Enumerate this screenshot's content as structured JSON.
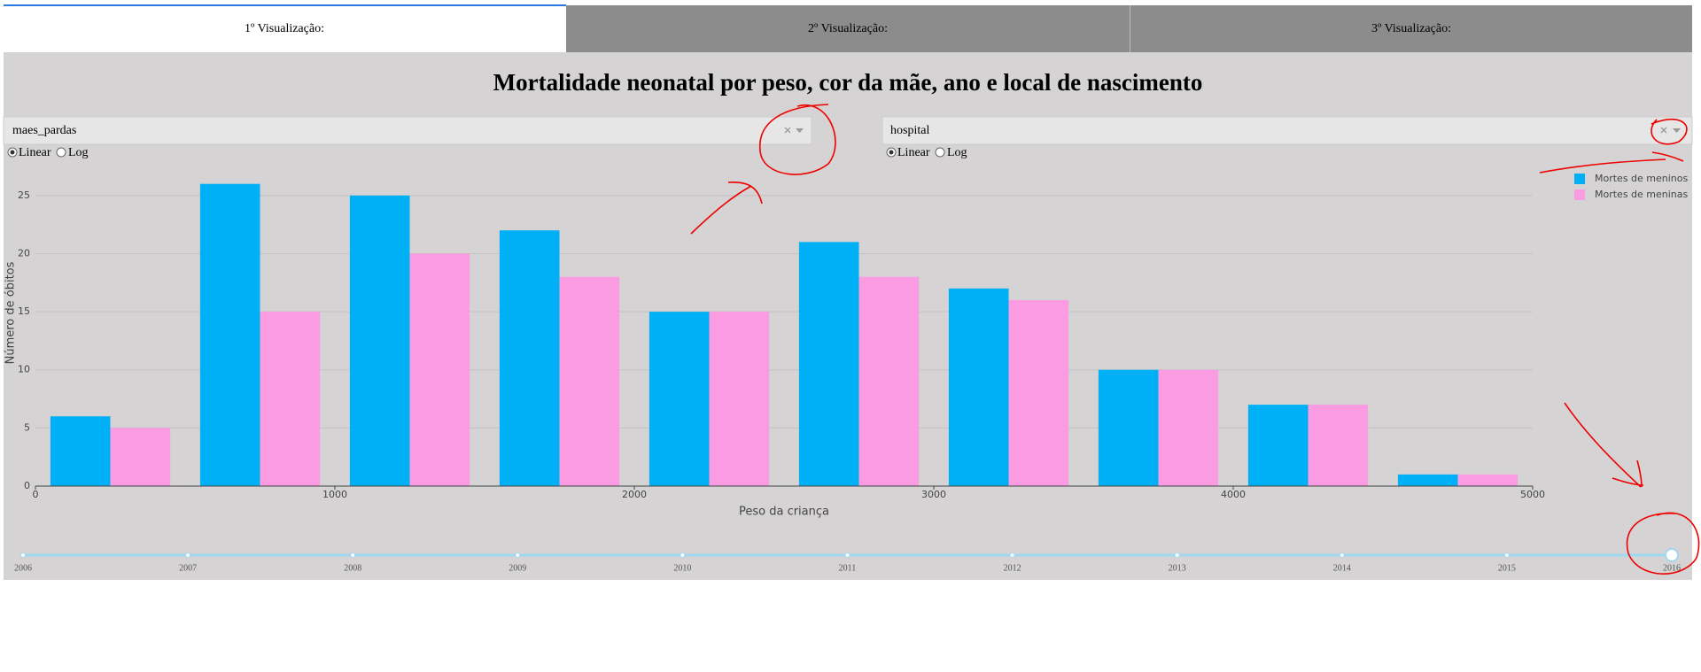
{
  "tabs": [
    "1º Visualização:",
    "2º Visualização:",
    "3º Visualização:"
  ],
  "header": {
    "title": "Mortalidade neonatal por peso, cor da mãe, ano e local de nascimento"
  },
  "dropdowns": [
    {
      "value": "maes_pardas"
    },
    {
      "value": "hospital"
    }
  ],
  "scale_options": [
    "Linear",
    "Log"
  ],
  "chart_data": {
    "type": "bar",
    "x": [
      250,
      750,
      1250,
      1750,
      2250,
      2750,
      3250,
      3750,
      4250,
      4750
    ],
    "series": [
      {
        "name": "Mortes de meninos",
        "color": "#00b0f6",
        "values": [
          6,
          26,
          25,
          22,
          15,
          21,
          17,
          10,
          7,
          1
        ]
      },
      {
        "name": "Mortes de meninas",
        "color": "#fb9be2",
        "values": [
          5,
          15,
          20,
          18,
          15,
          18,
          16,
          10,
          7,
          1
        ]
      }
    ],
    "xlabel": "Peso da criança",
    "ylabel": "Número de óbitos",
    "xlim": [
      0,
      5000
    ],
    "xticks": [
      0,
      1000,
      2000,
      3000,
      4000,
      5000
    ],
    "ylim": [
      0,
      27.5
    ],
    "yticks": [
      0,
      5,
      10,
      15,
      20,
      25
    ],
    "grid": true,
    "legend": "top-right"
  },
  "slider": {
    "marks": [
      2006,
      2007,
      2008,
      2009,
      2010,
      2011,
      2012,
      2013,
      2014,
      2015,
      2016
    ],
    "value": 2016
  }
}
